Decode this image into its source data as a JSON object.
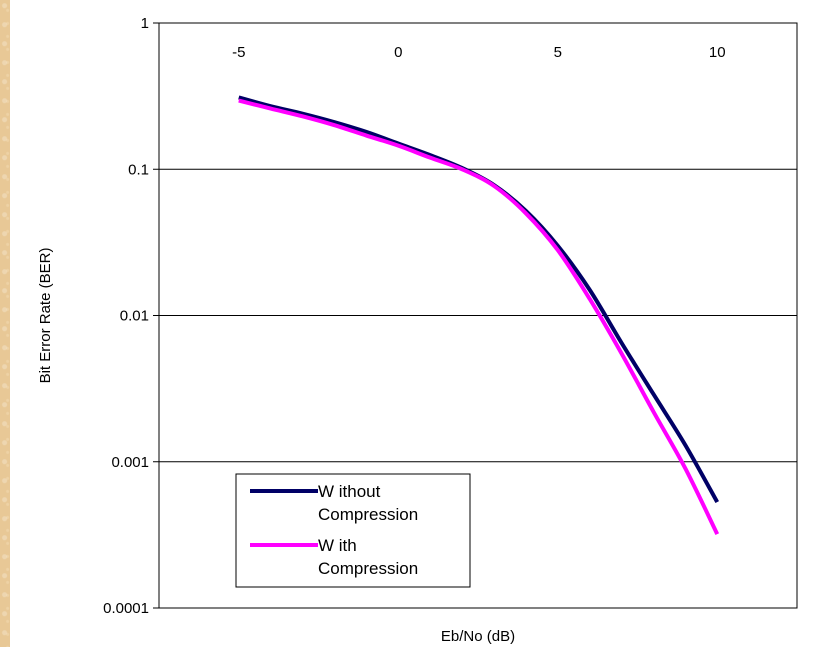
{
  "chart_data": {
    "type": "line",
    "title": "",
    "xlabel": "Eb/No (dB)",
    "ylabel": "Bit Error Rate (BER)",
    "xlim": [
      -7.5,
      12.5
    ],
    "ylim": [
      0.0001,
      1
    ],
    "yscale": "log",
    "x_ticks": [
      -5,
      0,
      5,
      10
    ],
    "x_tick_labels": [
      "-5",
      "0",
      "5",
      "10"
    ],
    "y_ticks": [
      1,
      0.1,
      0.01,
      0.001,
      0.0001
    ],
    "y_tick_labels": [
      "1",
      "0.1",
      "0.01",
      "0.001",
      "0.0001"
    ],
    "grid": "horizontal",
    "legend_position": "bottom-left",
    "series": [
      {
        "name": "Without Compression",
        "legend_label_lines": [
          "W ithout",
          "Compression"
        ],
        "color": "#000066",
        "x": [
          -5,
          -4,
          -3,
          -2,
          -1,
          0,
          1,
          2,
          3,
          4,
          5,
          6,
          7,
          8,
          9,
          10
        ],
        "y": [
          0.31,
          0.27,
          0.24,
          0.21,
          0.18,
          0.15,
          0.125,
          0.102,
          0.078,
          0.052,
          0.03,
          0.015,
          0.0065,
          0.0029,
          0.0013,
          0.00053
        ]
      },
      {
        "name": "With Compression",
        "legend_label_lines": [
          "W ith",
          "Compression"
        ],
        "color": "#ff00ff",
        "x": [
          -5,
          -4,
          -3,
          -2,
          -1,
          0,
          1,
          2,
          3,
          4,
          5,
          6,
          7,
          8,
          9,
          10
        ],
        "y": [
          0.295,
          0.26,
          0.23,
          0.2,
          0.17,
          0.145,
          0.12,
          0.1,
          0.077,
          0.05,
          0.028,
          0.013,
          0.0055,
          0.0022,
          0.0009,
          0.00032
        ]
      }
    ]
  }
}
